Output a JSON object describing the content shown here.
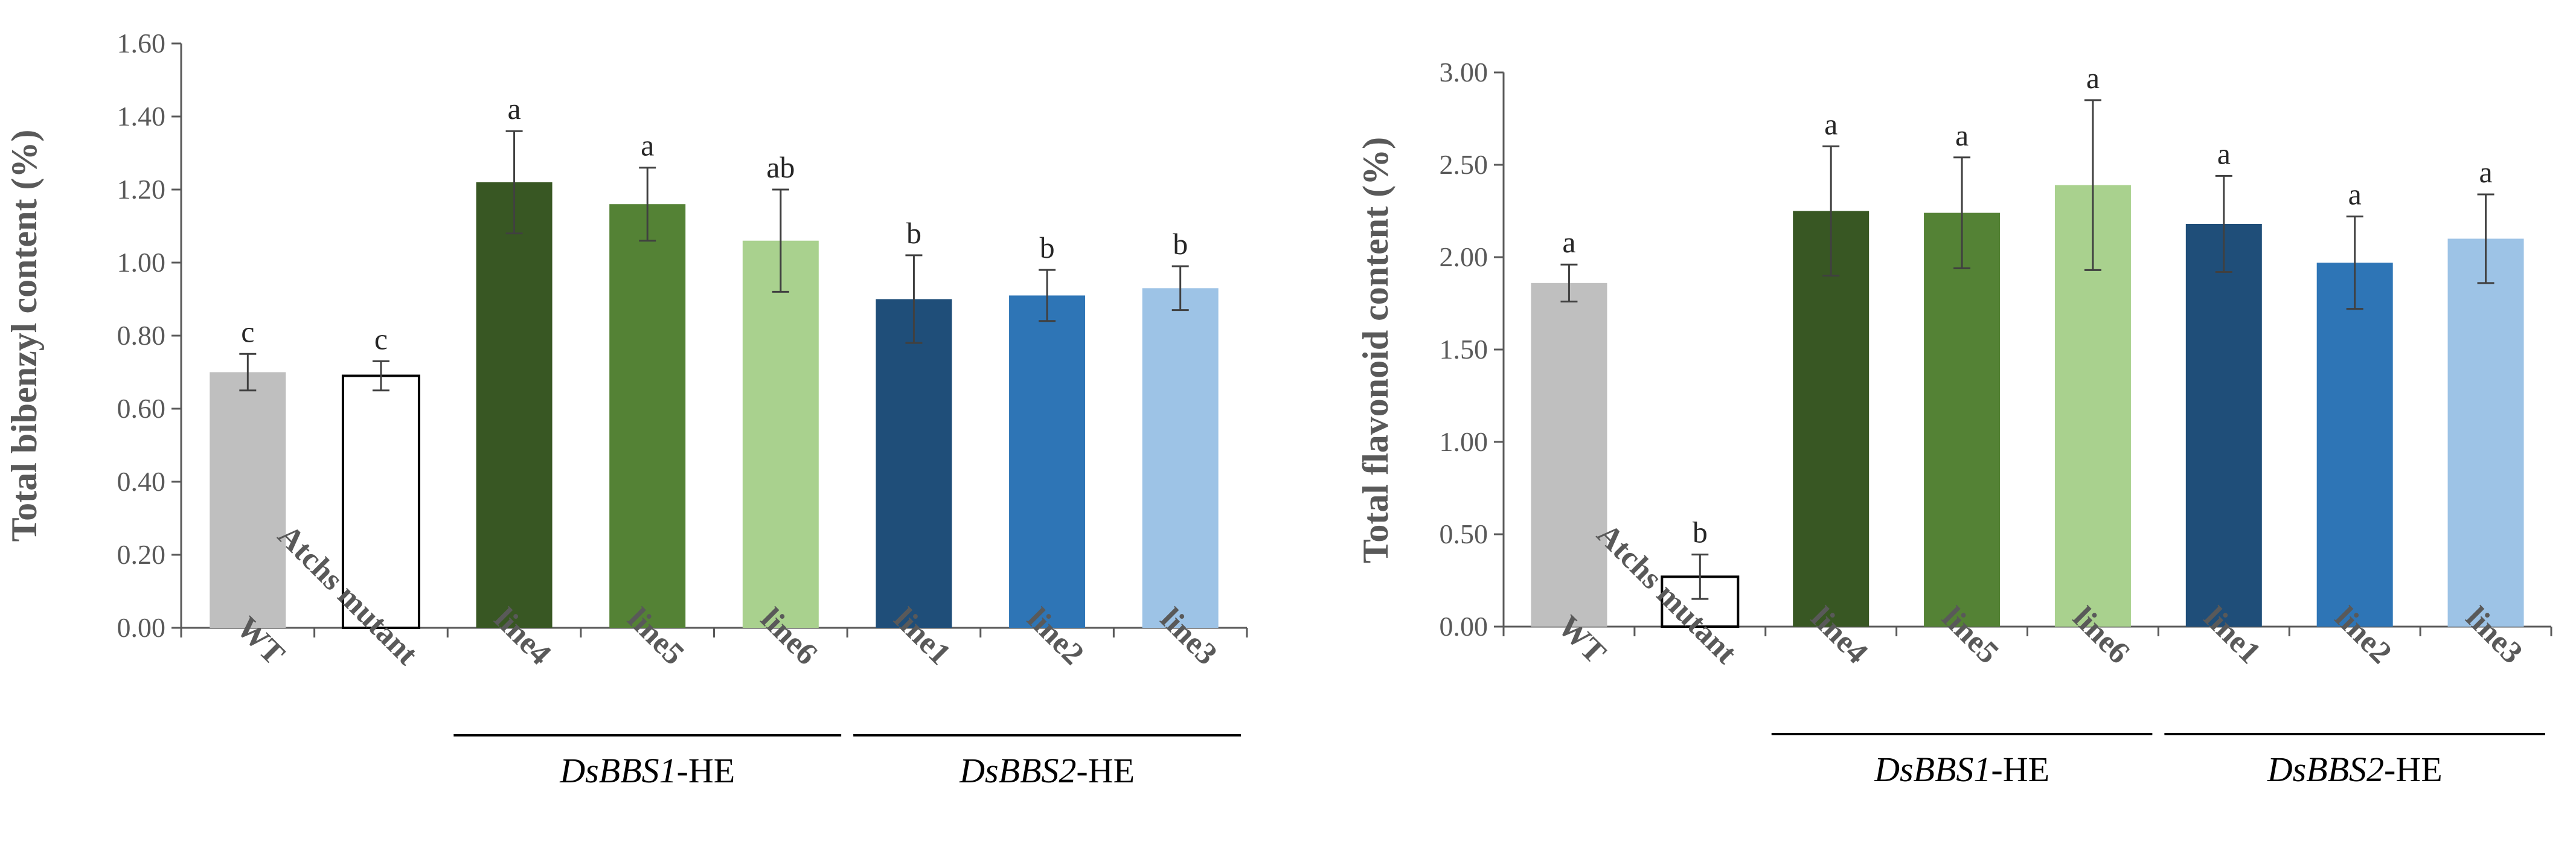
{
  "chart_data": [
    {
      "type": "bar",
      "ylabel": "Total bibenzyl content (%)",
      "ylim": [
        0,
        1.6
      ],
      "yticks": [
        "0.00",
        "0.20",
        "0.40",
        "0.60",
        "0.80",
        "1.00",
        "1.20",
        "1.40",
        "1.60"
      ],
      "grid": false,
      "categories": [
        "WT",
        "Atchs mutant",
        "line4",
        "line5",
        "line6",
        "line1",
        "line2",
        "line3"
      ],
      "values": [
        0.7,
        0.69,
        1.22,
        1.16,
        1.06,
        0.9,
        0.91,
        0.93
      ],
      "errors": [
        0.05,
        0.04,
        0.14,
        0.1,
        0.14,
        0.12,
        0.07,
        0.06
      ],
      "significance": [
        "c",
        "c",
        "a",
        "a",
        "ab",
        "b",
        "b",
        "b"
      ],
      "colors": [
        "#bfbfbf",
        "#ffffff",
        "#385723",
        "#548235",
        "#a9d18e",
        "#1f4e79",
        "#2e75b6",
        "#9dc3e6"
      ],
      "groups": [
        {
          "italic": "DsBBS1",
          "suffix": "-HE"
        },
        {
          "italic": "DsBBS2",
          "suffix": "-HE"
        }
      ]
    },
    {
      "type": "bar",
      "ylabel": "Total flavonoid content (%)",
      "ylim": [
        0,
        3.0
      ],
      "yticks": [
        "0.00",
        "0.50",
        "1.00",
        "1.50",
        "2.00",
        "2.50",
        "3.00"
      ],
      "grid": false,
      "categories": [
        "WT",
        "Atchs mutant",
        "line4",
        "line5",
        "line6",
        "line1",
        "line2",
        "line3"
      ],
      "values": [
        1.86,
        0.27,
        2.25,
        2.24,
        2.39,
        2.18,
        1.97,
        2.1
      ],
      "errors": [
        0.1,
        0.12,
        0.35,
        0.3,
        0.46,
        0.26,
        0.25,
        0.24
      ],
      "significance": [
        "a",
        "b",
        "a",
        "a",
        "a",
        "a",
        "a",
        "a"
      ],
      "colors": [
        "#bfbfbf",
        "#ffffff",
        "#385723",
        "#548235",
        "#a9d18e",
        "#1f4e79",
        "#2e75b6",
        "#9dc3e6"
      ],
      "groups": [
        {
          "italic": "DsBBS1",
          "suffix": "-HE"
        },
        {
          "italic": "DsBBS2",
          "suffix": "-HE"
        }
      ]
    }
  ]
}
